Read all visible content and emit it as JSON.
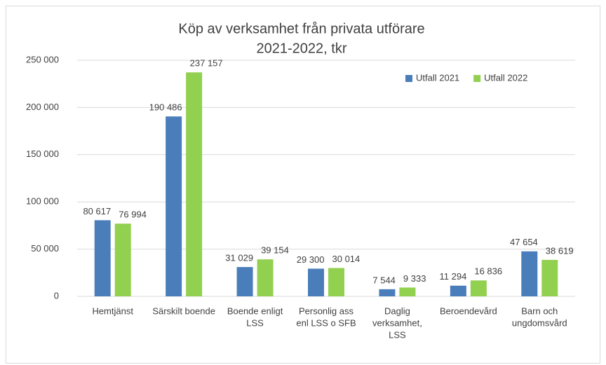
{
  "chart_data": {
    "type": "bar",
    "title": "Köp av verksamhet från privata utförare",
    "subtitle": "2021-2022, tkr",
    "categories": [
      [
        "Hemtjänst"
      ],
      [
        "Särskilt boende"
      ],
      [
        "Boende enligt",
        "LSS"
      ],
      [
        "Personlig ass",
        "enl LSS o SFB"
      ],
      [
        "Daglig",
        "verksamhet,",
        "LSS"
      ],
      [
        "Beroendevård"
      ],
      [
        "Barn och",
        "ungdomsvård"
      ]
    ],
    "series": [
      {
        "name": "Utfall 2021",
        "color": "#4a7ebb",
        "values": [
          80617,
          190486,
          31029,
          29300,
          7544,
          11294,
          47654
        ],
        "value_labels": [
          "80 617",
          "190 486",
          "31 029",
          "29 300",
          "7 544",
          "11 294",
          "47 654"
        ]
      },
      {
        "name": "Utfall 2022",
        "color": "#92d050",
        "values": [
          76994,
          237157,
          39154,
          30014,
          9333,
          16836,
          38619
        ],
        "value_labels": [
          "76 994",
          "237 157",
          "39 154",
          "30 014",
          "9 333",
          "16 836",
          "38 619"
        ]
      }
    ],
    "ylim": [
      0,
      250000
    ],
    "yticks": [
      0,
      {
        "value": 50000,
        "label": "50 000"
      },
      {
        "value": 100000,
        "label": "100 000"
      },
      {
        "value": 150000,
        "label": "150 000"
      },
      {
        "value": 200000,
        "label": "200 000"
      },
      {
        "value": 250000,
        "label": "250 000"
      }
    ],
    "grid": true,
    "legend": "top-right"
  }
}
